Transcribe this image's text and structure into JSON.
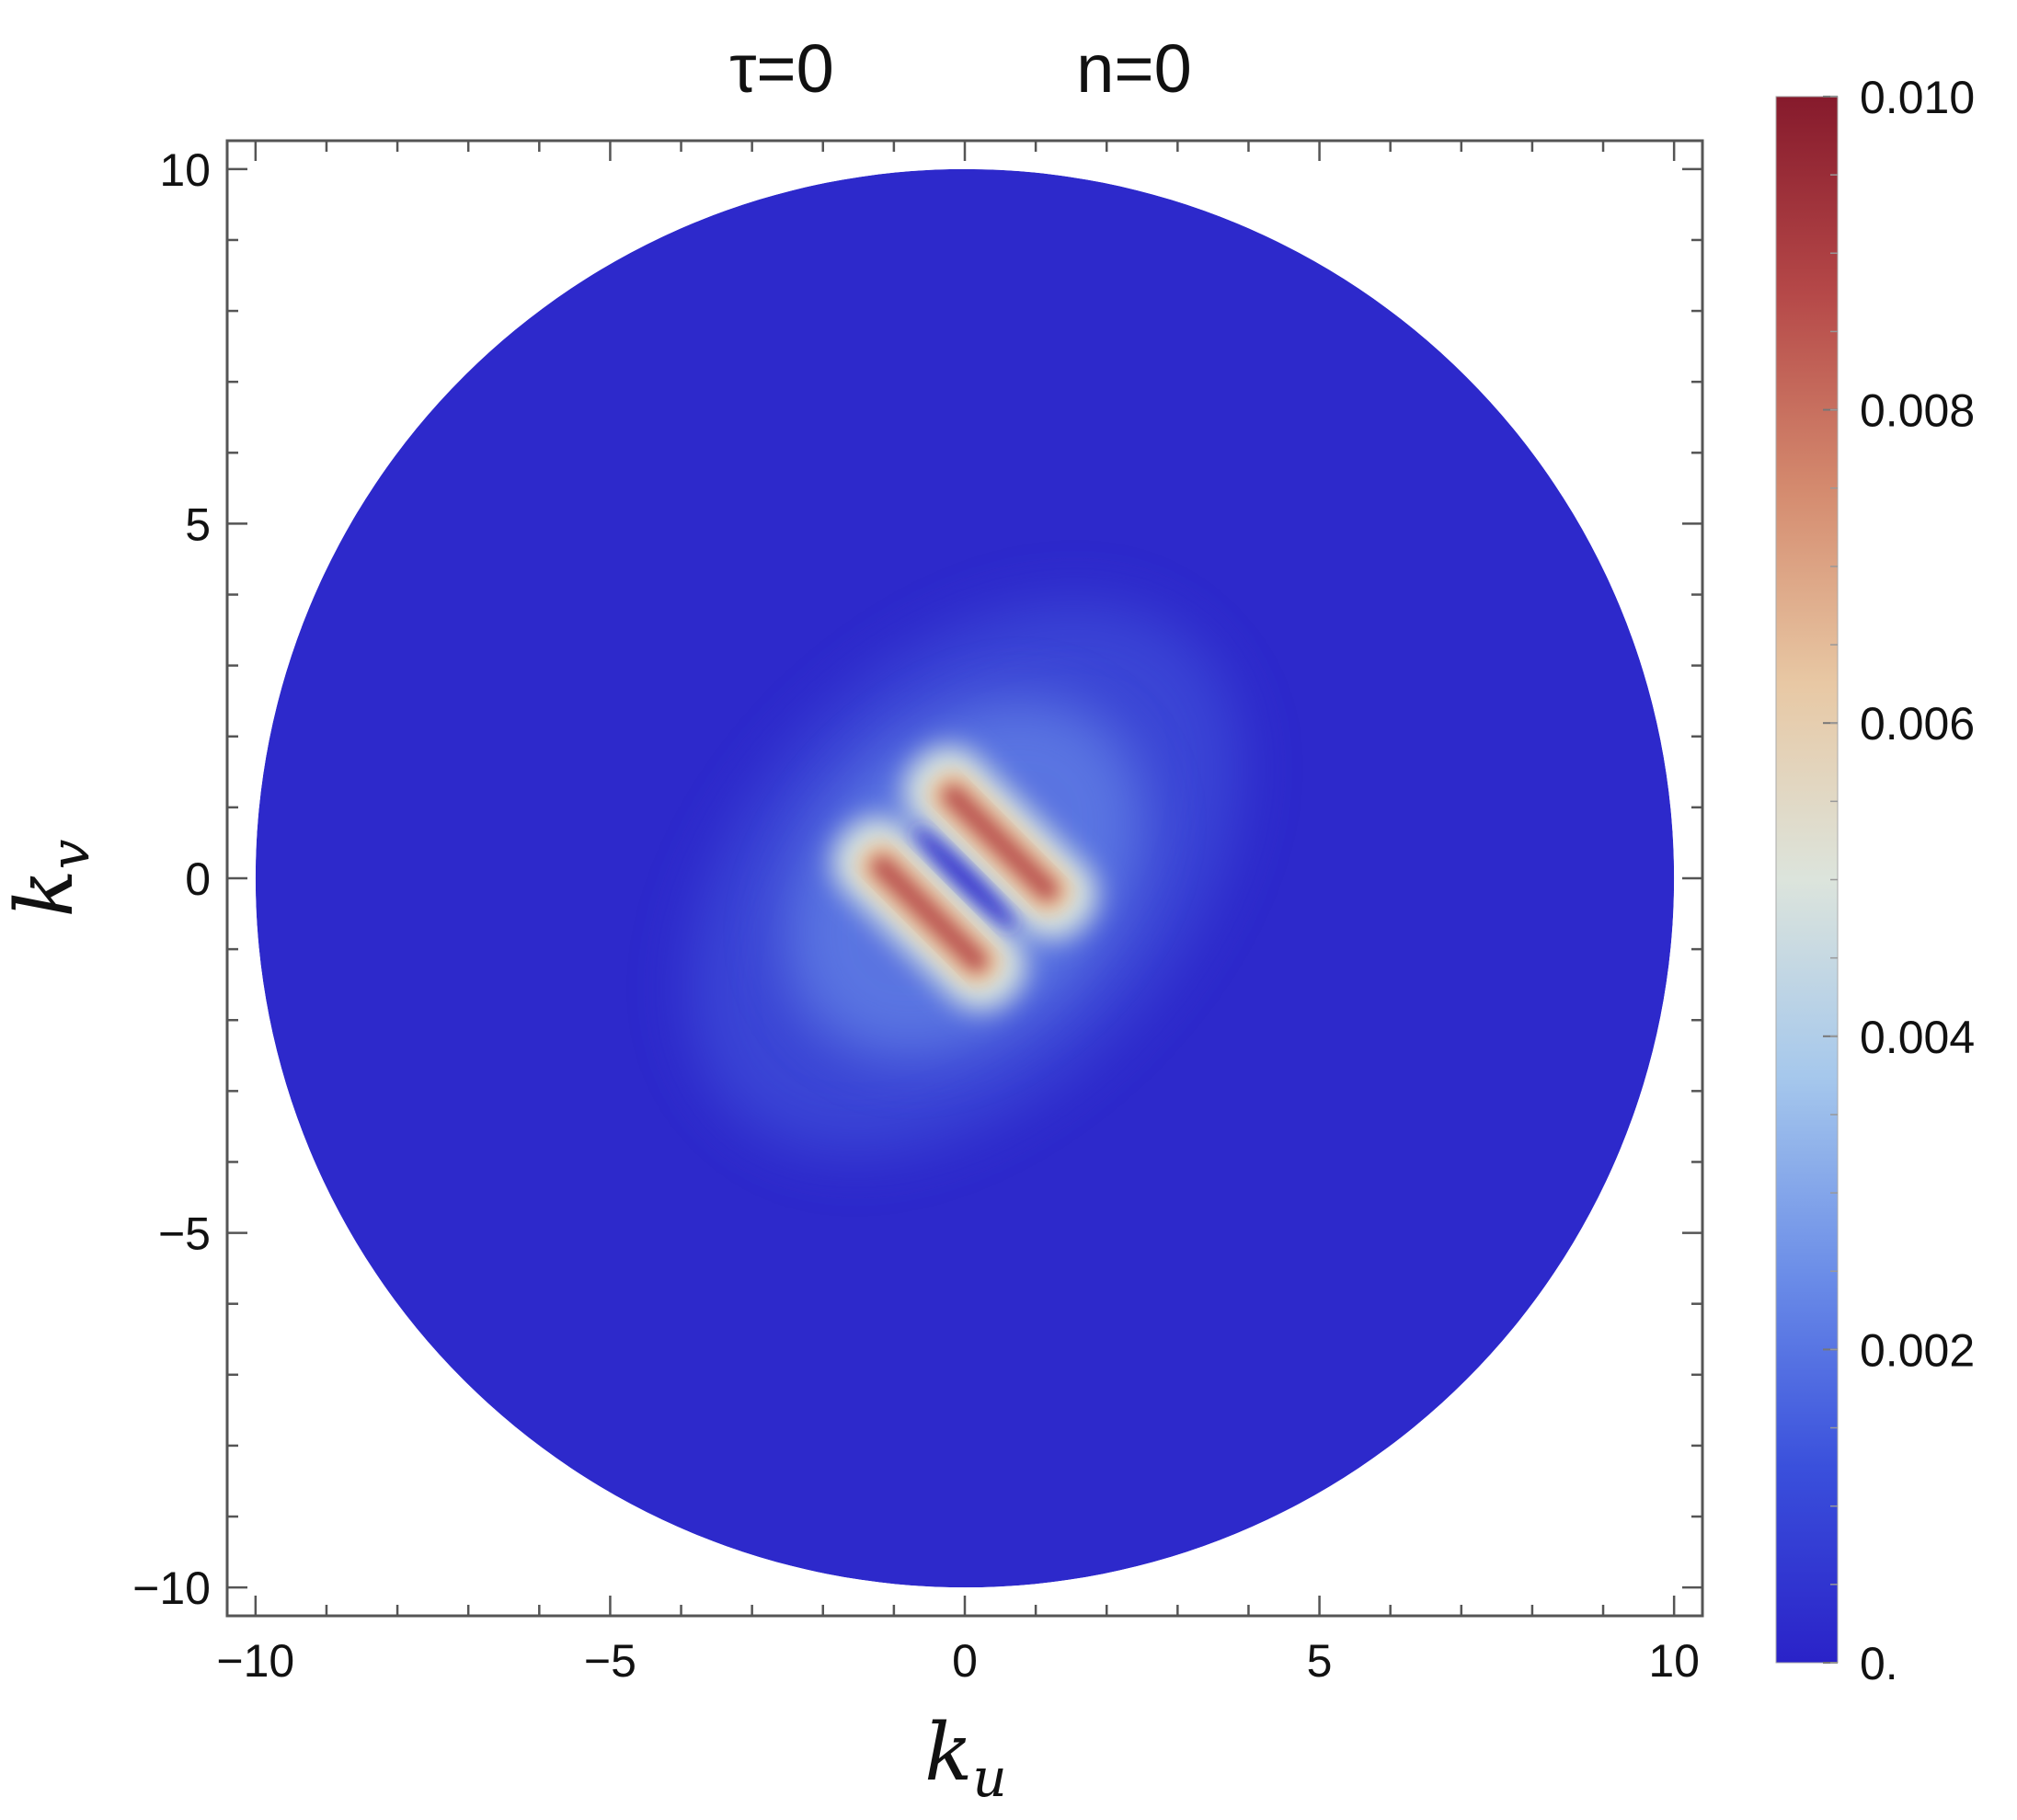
{
  "chart_data": {
    "type": "heatmap",
    "title_parts": [
      {
        "text": "τ=0"
      },
      {
        "text": "n=0"
      }
    ],
    "xlabel": {
      "base": "k",
      "sub": "u"
    },
    "ylabel": {
      "base": "k",
      "sub": "v"
    },
    "xlim": [
      -10.4,
      10.4
    ],
    "ylim": [
      -10.4,
      10.4
    ],
    "domain": {
      "shape": "disk",
      "radius": 10
    },
    "x_ticks": [
      {
        "value": -10,
        "label": "−10"
      },
      {
        "value": -5,
        "label": "−5"
      },
      {
        "value": 0,
        "label": "0"
      },
      {
        "value": 5,
        "label": "5"
      },
      {
        "value": 10,
        "label": "10"
      }
    ],
    "y_ticks": [
      {
        "value": 10,
        "label": "10"
      },
      {
        "value": 5,
        "label": "5"
      },
      {
        "value": 0,
        "label": "0"
      },
      {
        "value": -5,
        "label": "−5"
      },
      {
        "value": -10,
        "label": "−10"
      }
    ],
    "minor_tick_step": 1,
    "colorbar": {
      "range": [
        0,
        0.01
      ],
      "ticks": [
        {
          "value": 0.0,
          "label": "0."
        },
        {
          "value": 0.002,
          "label": "0.002"
        },
        {
          "value": 0.004,
          "label": "0.004"
        },
        {
          "value": 0.006,
          "label": "0.006"
        },
        {
          "value": 0.008,
          "label": "0.008"
        },
        {
          "value": 0.01,
          "label": "0.010"
        }
      ],
      "colors": [
        "#2a22c8",
        "#3a50dc",
        "#6c8ee8",
        "#a6c8ec",
        "#dce4dc",
        "#e8c8a4",
        "#d48a6e",
        "#b54848",
        "#861a2c"
      ]
    },
    "features": [
      {
        "name": "background",
        "center": [
          0,
          0
        ],
        "value": 0.0002
      },
      {
        "name": "upper-ridge",
        "center": [
          0.5,
          0.5
        ],
        "direction": [
          1,
          -1
        ],
        "length": 2.2,
        "value": 0.0085
      },
      {
        "name": "lower-ridge",
        "center": [
          -0.5,
          -0.5
        ],
        "direction": [
          1,
          -1
        ],
        "length": 2.2,
        "value": 0.0085
      },
      {
        "name": "center-trough",
        "center": [
          0,
          0
        ],
        "direction": [
          1,
          -1
        ],
        "length": 2.0,
        "value": 0.0002
      },
      {
        "name": "halo",
        "center": [
          0,
          0
        ],
        "value": 0.0015
      }
    ]
  }
}
